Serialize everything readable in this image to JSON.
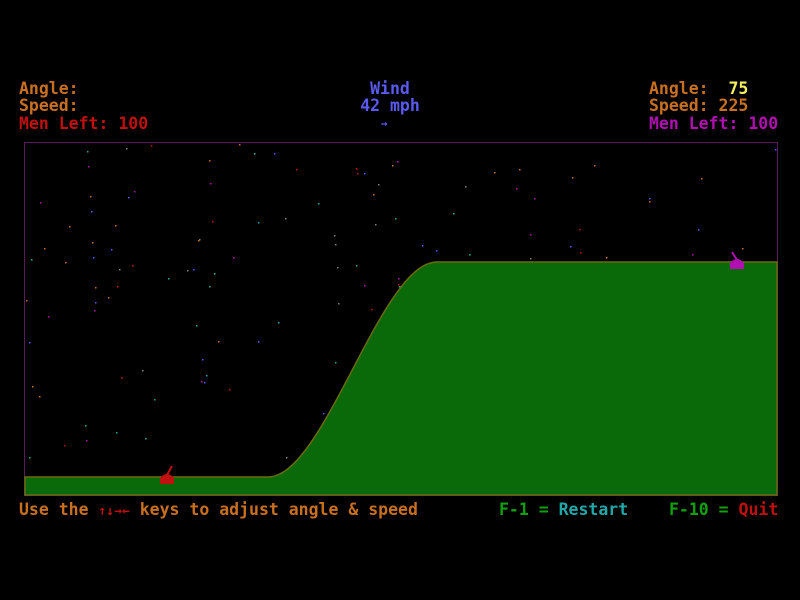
{
  "player1": {
    "angle_label": "Angle:",
    "angle_value": "",
    "speed_label": "Speed:",
    "speed_value": "",
    "men_left_label": "Men Left:",
    "men_left_value": "100",
    "color": "#c01010"
  },
  "player2": {
    "angle_label": "Angle:",
    "angle_value": "75",
    "speed_label": "Speed:",
    "speed_value": "225",
    "men_left_label": "Men Left:",
    "men_left_value": "100",
    "color": "#b010b0"
  },
  "wind": {
    "label": "Wind",
    "value": "42 mph",
    "direction_arrow": "→",
    "color": "#5a5af0"
  },
  "footer": {
    "instr_pre": "Use the",
    "instr_keys": "↑↓→←",
    "instr_post": "keys to adjust angle & speed",
    "restart_key": "F-1 =",
    "restart_label": "Restart",
    "quit_key": "F-10 =",
    "quit_label": "Quit"
  },
  "colors": {
    "label": "#c87020",
    "value_highlight": "#f0f060",
    "terrain": "#0a6a0a",
    "terrain_edge": "#6a6a10",
    "border": "#5a1a5a",
    "key": "#10a010",
    "restart": "#20a8a8",
    "quit": "#c01010"
  }
}
